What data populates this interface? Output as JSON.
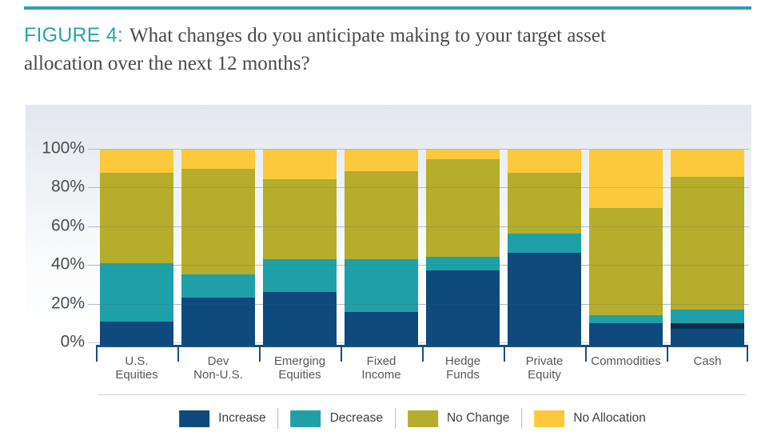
{
  "page": {
    "figure_label": "FIGURE 4:",
    "title_line1": "What changes do you anticipate making to your target asset",
    "title_line2": "allocation over the next 12 months?"
  },
  "colors": {
    "accent_teal": "#2aa3ac",
    "title_text": "#4a4a4c",
    "axis_text": "#4c4d4f",
    "grid_line": "#c9d4df",
    "axis_bracket": "#1c4e7d",
    "cash_dark_band": "#0e2b4c"
  },
  "chart_data": {
    "type": "bar",
    "subtype": "stacked-percent",
    "title": "What changes do you anticipate making to your target asset allocation over the next 12 months?",
    "categories": [
      "U.S. Equities",
      "Dev Non-U.S.",
      "Emerging Equities",
      "Fixed Income",
      "Hedge Funds",
      "Private Equity",
      "Commodities",
      "Cash"
    ],
    "category_label_lines": [
      [
        "U.S.",
        "Equities"
      ],
      [
        "Dev",
        "Non-U.S."
      ],
      [
        "Emerging",
        "Equities"
      ],
      [
        "Fixed",
        "Income"
      ],
      [
        "Hedge",
        "Funds"
      ],
      [
        "Private",
        "Equity"
      ],
      [
        "Commodities"
      ],
      [
        "Cash"
      ]
    ],
    "series": [
      {
        "name": "Increase",
        "color": "#0e4a7b",
        "values": [
          12,
          24,
          27,
          17,
          38,
          47,
          11,
          11
        ]
      },
      {
        "name": "Decrease",
        "color": "#1fa0a9",
        "values": [
          30,
          12,
          17,
          27,
          7,
          10,
          4,
          7
        ]
      },
      {
        "name": "No Change",
        "color": "#b5ad2b",
        "values": [
          46,
          54,
          41,
          45,
          50,
          31,
          55,
          68
        ]
      },
      {
        "name": "No Allocation",
        "color": "#fbc93b",
        "values": [
          12,
          10,
          15,
          11,
          5,
          12,
          30,
          14
        ]
      }
    ],
    "cash_dark_band_pct": 3,
    "y_ticks": [
      "0%",
      "20%",
      "40%",
      "60%",
      "80%",
      "100%"
    ],
    "y_tick_values": [
      0,
      20,
      40,
      60,
      80,
      100
    ],
    "ylim": [
      0,
      100
    ],
    "grid": true,
    "legend_position": "bottom"
  }
}
